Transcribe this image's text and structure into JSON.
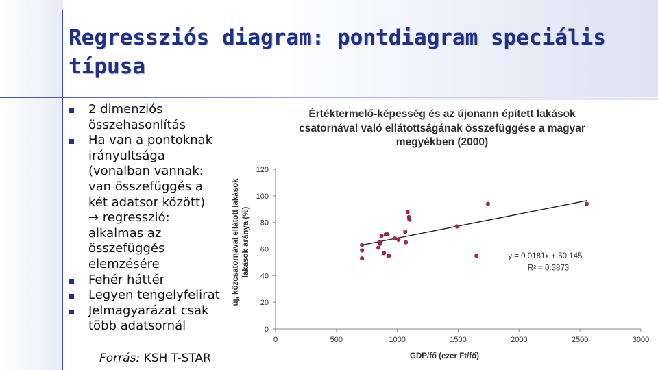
{
  "slide": {
    "title_line1": "Regressziós diagram: pontdiagram speciális",
    "title_line2": "típusa",
    "bullets": [
      {
        "lines": [
          "2 dimenziós",
          "összehasonlítás"
        ]
      },
      {
        "lines": [
          "Ha van a pontoknak",
          "irányultsága",
          "(vonalban vannak:",
          "van összefüggés a",
          "két adatsor között)",
          "→ regresszió:",
          "alkalmas az",
          "összefüggés",
          "elemzésére"
        ]
      },
      {
        "lines": [
          "Fehér háttér"
        ]
      },
      {
        "lines": [
          "Legyen tengelyfelirat"
        ]
      },
      {
        "lines": [
          "Jelmagyarázat csak",
          "több adatsornál"
        ]
      }
    ],
    "source_label": "Forrás:",
    "source_value": "KSH T-STAR",
    "bullet_color": "#1f2f8c",
    "title_color": "#1f2f8c"
  },
  "chart_data": {
    "type": "scatter",
    "title_lines": [
      "Értéktermelő-képesség és az újonann épített lakások",
      "csatornával való ellátottságának összefüggése a magyar",
      "megyékben (2000)"
    ],
    "xlabel": "GDP/fő (ezer Ft/fő)",
    "ylabel_lines": [
      "új, közcsatornával ellátott lakások",
      "lakások aránya (%)"
    ],
    "xlim": [
      0,
      3000
    ],
    "ylim": [
      0,
      120
    ],
    "xticks": [
      "0",
      "500",
      "1000",
      "1500",
      "2000",
      "2500",
      "3000"
    ],
    "yticks": [
      "0",
      "20",
      "40",
      "60",
      "80",
      "100",
      "120"
    ],
    "grid": false,
    "point_color": "#b0245a",
    "trendline_color": "#222222",
    "x": [
      710,
      710,
      710,
      845,
      855,
      860,
      870,
      890,
      905,
      920,
      930,
      980,
      1010,
      1065,
      1070,
      1085,
      1095,
      1100,
      1490,
      1650,
      1745,
      2555
    ],
    "y": [
      63,
      59,
      53,
      61,
      65,
      64,
      70,
      57,
      71,
      71,
      55,
      68,
      67,
      73,
      65,
      88,
      84,
      82,
      77,
      55,
      94,
      94
    ],
    "trendline": {
      "slope": 0.0181,
      "intercept": 50.145,
      "x_range": [
        700,
        2560
      ]
    },
    "equation_label": "y = 0.0181x + 50.145",
    "r2_label": "R² = 0.3873"
  }
}
